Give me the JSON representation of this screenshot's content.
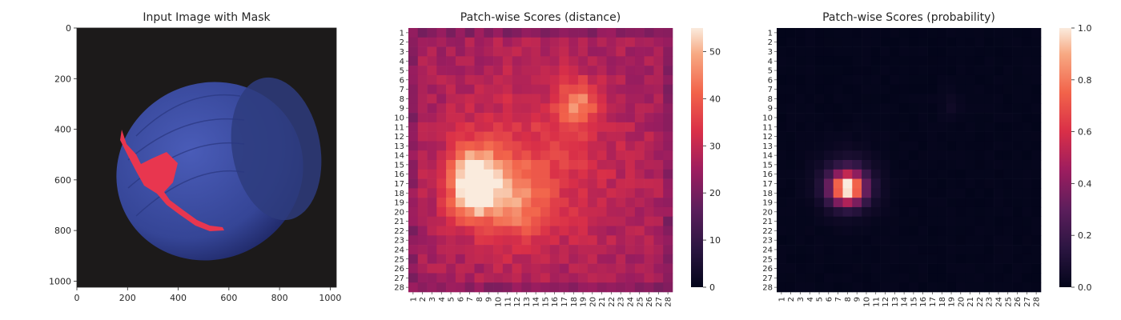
{
  "figure": {
    "panels": [
      {
        "title": "Input Image with Mask"
      },
      {
        "title": "Patch-wise Scores (distance)"
      },
      {
        "title": "Patch-wise Scores (probability)"
      }
    ]
  },
  "chart_data": [
    {
      "type": "image",
      "title": "Input Image with Mask",
      "xlim": [
        0,
        1024
      ],
      "ylim": [
        1024,
        0
      ],
      "xticks": [
        0,
        200,
        400,
        600,
        800,
        1000
      ],
      "yticks": [
        0,
        200,
        400,
        600,
        800,
        1000
      ],
      "object": {
        "description": "hazelnut photographed on dark background with red defect mask",
        "nut_color": "#3a4a9a",
        "mask_color": "#e8364f"
      }
    },
    {
      "type": "heatmap",
      "title": "Patch-wise Scores (distance)",
      "rows": 28,
      "cols": 28,
      "row_labels": [
        "1",
        "2",
        "3",
        "4",
        "5",
        "6",
        "7",
        "8",
        "9",
        "10",
        "11",
        "12",
        "13",
        "14",
        "15",
        "16",
        "17",
        "18",
        "19",
        "20",
        "21",
        "22",
        "23",
        "24",
        "25",
        "26",
        "27",
        "28"
      ],
      "col_labels": [
        "1",
        "2",
        "3",
        "4",
        "5",
        "6",
        "7",
        "8",
        "9",
        "10",
        "11",
        "12",
        "13",
        "14",
        "15",
        "16",
        "17",
        "18",
        "19",
        "20",
        "21",
        "22",
        "23",
        "24",
        "25",
        "26",
        "27",
        "28"
      ],
      "colorbar": {
        "min": 0,
        "max": 55,
        "ticks": [
          0,
          10,
          20,
          30,
          40,
          50
        ]
      },
      "hotspots": [
        {
          "row": 17,
          "col": 8,
          "value": 55
        },
        {
          "row": 8,
          "col": 19,
          "value": 42
        }
      ]
    },
    {
      "type": "heatmap",
      "title": "Patch-wise Scores (probability)",
      "rows": 28,
      "cols": 28,
      "row_labels": [
        "1",
        "2",
        "3",
        "4",
        "5",
        "6",
        "7",
        "8",
        "9",
        "10",
        "11",
        "12",
        "13",
        "14",
        "15",
        "16",
        "17",
        "18",
        "19",
        "20",
        "21",
        "22",
        "23",
        "24",
        "25",
        "26",
        "27",
        "28"
      ],
      "col_labels": [
        "1",
        "2",
        "3",
        "4",
        "5",
        "6",
        "7",
        "8",
        "9",
        "10",
        "11",
        "12",
        "13",
        "14",
        "15",
        "16",
        "17",
        "18",
        "19",
        "20",
        "21",
        "22",
        "23",
        "24",
        "25",
        "26",
        "27",
        "28"
      ],
      "colorbar": {
        "min": 0.0,
        "max": 1.0,
        "ticks": [
          "0.0",
          "0.2",
          "0.4",
          "0.6",
          "0.8",
          "1.0"
        ]
      },
      "hotspots": [
        {
          "row": 18,
          "col": 8,
          "value": 0.9
        }
      ]
    }
  ]
}
